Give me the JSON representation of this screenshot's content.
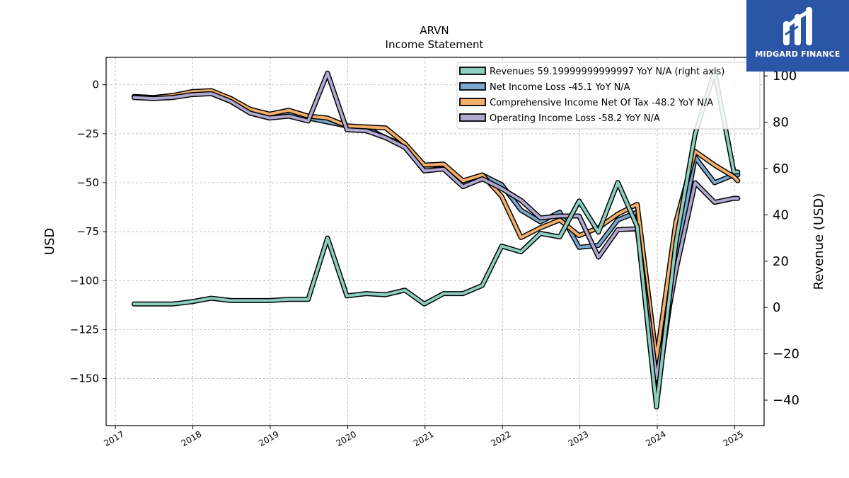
{
  "brand": {
    "name": "MIDGARD FINANCE",
    "logo_icon": "midgard-m-logo-icon",
    "background": "#2b55a6"
  },
  "chart_data": {
    "type": "line",
    "title": "ARVN",
    "subtitle": "Income Statement",
    "ylabel": "USD",
    "y2label": "Revenue (USD)",
    "xlabel": "",
    "grid": true,
    "legend_position": "top-right",
    "xlim": [
      2016.88,
      2025.38
    ],
    "ylim": [
      -174,
      14
    ],
    "y2lim": [
      -51,
      108
    ],
    "xticks": [
      2017,
      2018,
      2019,
      2020,
      2021,
      2022,
      2023,
      2024,
      2025
    ],
    "yticks": [
      0,
      -25,
      -50,
      -75,
      -100,
      -125,
      -150
    ],
    "y2ticks": [
      100,
      80,
      60,
      40,
      20,
      0,
      -20,
      -40
    ],
    "series": [
      {
        "name": "Net Income Loss",
        "legend_label": "Net Income Loss  -45.1 YoY N/A",
        "axis": "left",
        "color": "#7ba7cc",
        "x": [
          2017.24,
          2017.49,
          2017.74,
          2017.99,
          2018.24,
          2018.49,
          2018.74,
          2018.99,
          2019.24,
          2019.49,
          2019.74,
          2019.99,
          2020.24,
          2020.49,
          2020.74,
          2020.99,
          2021.24,
          2021.49,
          2021.74,
          2021.99,
          2022.24,
          2022.49,
          2022.74,
          2022.99,
          2023.24,
          2023.49,
          2023.74,
          2023.99,
          2024.24,
          2024.49,
          2024.74,
          2024.99,
          2025.04
        ],
        "values": [
          -6,
          -6.5,
          -5.5,
          -4,
          -3.5,
          -7,
          -13,
          -15,
          -15,
          -17,
          -19,
          -21,
          -22,
          -27,
          -31,
          -41,
          -41,
          -50,
          -46,
          -51,
          -64,
          -70,
          -65,
          -83,
          -82,
          -69,
          -65,
          -160,
          -90,
          -37,
          -50,
          -46,
          -46
        ]
      },
      {
        "name": "Comprehensive Income Net Of Tax",
        "legend_label": "Comprehensive Income Net Of Tax  -48.2 YoY N/A",
        "axis": "left",
        "color": "#f4b06b",
        "x": [
          2017.24,
          2017.49,
          2017.74,
          2017.99,
          2018.24,
          2018.49,
          2018.74,
          2018.99,
          2019.24,
          2019.49,
          2019.74,
          2019.99,
          2020.24,
          2020.49,
          2020.74,
          2020.99,
          2021.24,
          2021.49,
          2021.74,
          2021.99,
          2022.24,
          2022.49,
          2022.74,
          2022.99,
          2023.24,
          2023.49,
          2023.74,
          2023.99,
          2024.24,
          2024.49,
          2024.74,
          2024.99,
          2025.04
        ],
        "values": [
          -6,
          -6.5,
          -5.5,
          -3.5,
          -3,
          -7,
          -12.5,
          -15,
          -13,
          -16,
          -17,
          -21,
          -21.5,
          -22,
          -30,
          -41,
          -40.5,
          -49,
          -46,
          -57,
          -78,
          -73,
          -69,
          -77,
          -73,
          -66,
          -61,
          -140,
          -70,
          -34,
          -41,
          -47,
          -49
        ]
      },
      {
        "name": "Operating Income Loss",
        "legend_label": "Operating Income Loss  -58.2 YoY N/A",
        "axis": "left",
        "color": "#b1a9d1",
        "x": [
          2017.24,
          2017.49,
          2017.74,
          2017.99,
          2018.24,
          2018.49,
          2018.74,
          2018.99,
          2019.24,
          2019.49,
          2019.74,
          2019.99,
          2020.24,
          2020.49,
          2020.74,
          2020.99,
          2021.24,
          2021.49,
          2021.74,
          2021.99,
          2022.24,
          2022.49,
          2022.74,
          2022.99,
          2023.24,
          2023.49,
          2023.74,
          2023.99,
          2024.24,
          2024.49,
          2024.74,
          2024.99,
          2025.04
        ],
        "values": [
          -6.5,
          -7,
          -6.5,
          -5,
          -4.5,
          -8.5,
          -14.5,
          -17,
          -16,
          -18.5,
          6,
          -23,
          -23.5,
          -27,
          -32,
          -44,
          -43,
          -52,
          -48,
          -53,
          -59,
          -68,
          -67,
          -67,
          -88,
          -74,
          -73.5,
          -150,
          -95,
          -50,
          -60,
          -58,
          -58
        ]
      },
      {
        "name": "Revenues",
        "legend_label": "Revenues  59.19999999999997 YoY N/A (right axis)",
        "axis": "right",
        "color": "#8ccfbf",
        "x": [
          2017.24,
          2017.49,
          2017.74,
          2017.99,
          2018.24,
          2018.49,
          2018.74,
          2018.99,
          2019.24,
          2019.49,
          2019.74,
          2019.99,
          2020.24,
          2020.49,
          2020.74,
          2020.99,
          2021.24,
          2021.49,
          2021.74,
          2021.99,
          2022.24,
          2022.49,
          2022.74,
          2022.99,
          2023.24,
          2023.49,
          2023.74,
          2023.99,
          2024.24,
          2024.49,
          2024.74,
          2024.99,
          2025.04
        ],
        "values": [
          1.5,
          1.5,
          1.5,
          2.5,
          4,
          3,
          3,
          3,
          3.5,
          3.5,
          30,
          5,
          6,
          5.5,
          7.5,
          1.5,
          6,
          6,
          9.5,
          26.5,
          24,
          32,
          30.5,
          46,
          32.5,
          54,
          35,
          -43,
          28,
          75,
          102,
          58.5,
          58.5
        ]
      }
    ]
  }
}
